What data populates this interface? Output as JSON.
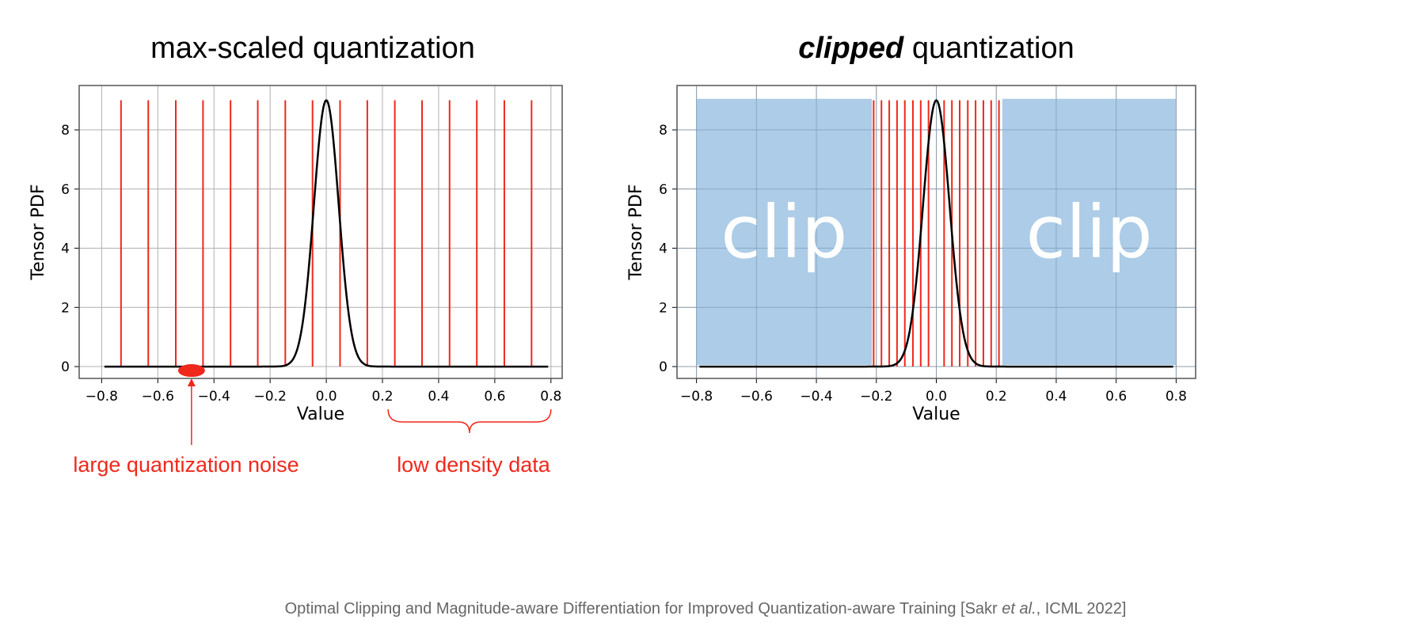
{
  "chart_data": [
    {
      "type": "line",
      "title": "max-scaled quantization",
      "xlabel": "Value",
      "ylabel": "Tensor PDF",
      "xlim": [
        -0.88,
        0.84
      ],
      "ylim": [
        -0.4,
        9.5
      ],
      "xticks": [
        "−0.8",
        "−0.6",
        "−0.4",
        "−0.2",
        "0.0",
        "0.2",
        "0.4",
        "0.6",
        "0.8"
      ],
      "yticks": [
        "0",
        "2",
        "4",
        "6",
        "8"
      ],
      "grid": true,
      "pdf": {
        "type": "gaussian",
        "mean": 0,
        "std": 0.0443,
        "peak": 9.0,
        "range": [
          -0.79,
          0.79
        ]
      },
      "quantization_levels": [
        -0.731,
        -0.634,
        -0.536,
        -0.439,
        -0.341,
        -0.244,
        -0.146,
        -0.049,
        0.049,
        0.146,
        0.244,
        0.341,
        0.439,
        0.536,
        0.634,
        0.731
      ],
      "level_height": 9.0,
      "colors": {
        "levels": "#f0281c",
        "pdf": "#000000"
      },
      "annotations": [
        {
          "text": "large quantization noise",
          "points_to_x": -0.48
        },
        {
          "text": "low density data",
          "range": [
            0.22,
            0.8
          ]
        }
      ]
    },
    {
      "type": "line",
      "title_bold": "clipped",
      "title": "quantization",
      "xlabel": "Value",
      "ylabel": "Tensor PDF",
      "xlim": [
        -0.865,
        0.865
      ],
      "ylim": [
        -0.4,
        9.5
      ],
      "xticks": [
        "−0.8",
        "−0.6",
        "−0.4",
        "−0.2",
        "0.0",
        "0.2",
        "0.4",
        "0.6",
        "0.8"
      ],
      "yticks": [
        "0",
        "2",
        "4",
        "6",
        "8"
      ],
      "grid": true,
      "pdf": {
        "type": "gaussian",
        "mean": 0,
        "std": 0.0443,
        "peak": 9.0,
        "range": [
          -0.79,
          0.79
        ]
      },
      "quantization_levels": [
        -0.209,
        -0.183,
        -0.157,
        -0.131,
        -0.105,
        -0.078,
        -0.052,
        -0.026,
        0.026,
        0.052,
        0.078,
        0.105,
        0.131,
        0.157,
        0.183,
        0.209
      ],
      "level_height": 9.0,
      "clip_regions": [
        {
          "x": [
            -0.8,
            -0.215
          ],
          "y": [
            0.05,
            9.05
          ],
          "label": "clip"
        },
        {
          "x": [
            0.22,
            0.8
          ],
          "y": [
            0.05,
            9.05
          ],
          "label": "clip"
        }
      ],
      "colors": {
        "levels": "#f0281c",
        "pdf": "#000000",
        "clip": "#a8c9e6"
      }
    }
  ],
  "caption": {
    "pre": "Optimal Clipping and Magnitude-aware Differentiation for Improved Quantization-aware Training [Sakr ",
    "etal": "et al.",
    "post": ", ICML 2022]"
  }
}
